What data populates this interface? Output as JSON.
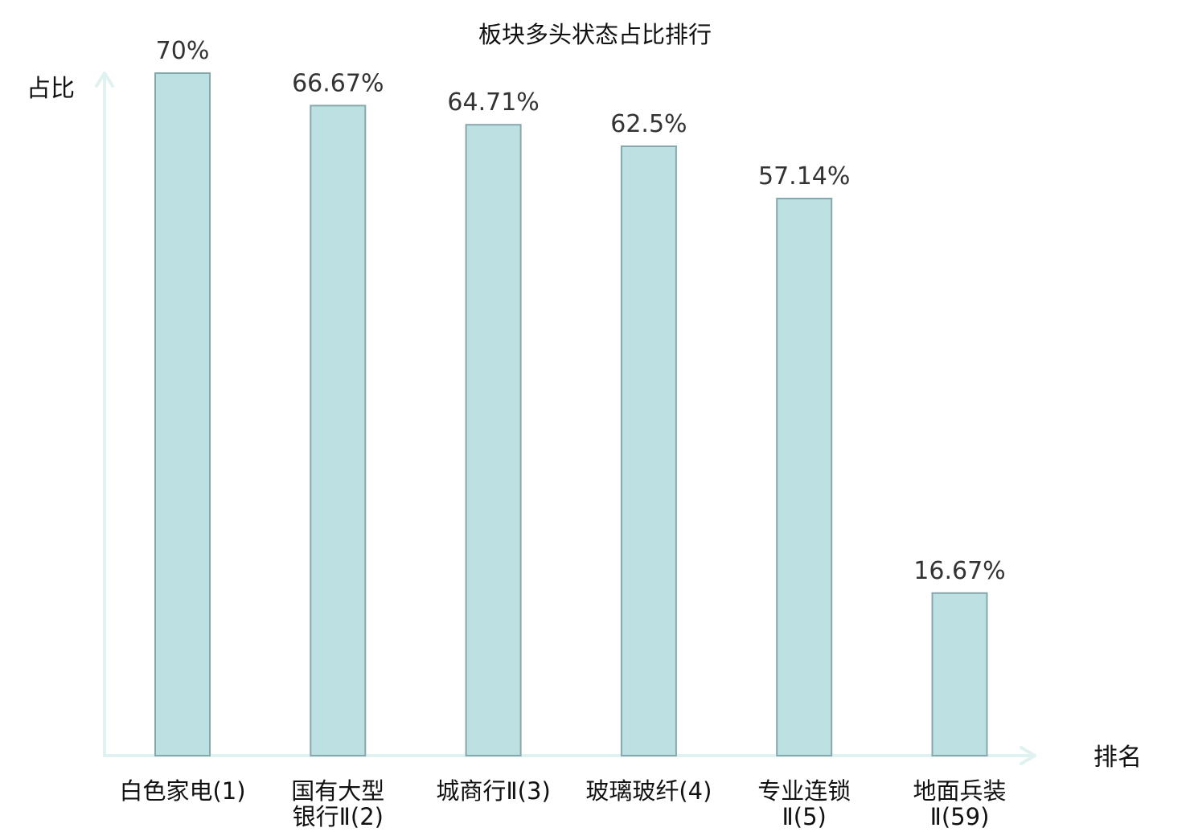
{
  "chart_data": {
    "type": "bar",
    "title": "板块多头状态占比排行",
    "ylabel": "占比",
    "xlabel": "排名",
    "unit": "%",
    "categories": [
      {
        "lines": [
          "白色家电(1)"
        ],
        "highlight": false
      },
      {
        "lines": [
          "国有大型",
          "银行Ⅱ(2)"
        ],
        "highlight": false
      },
      {
        "lines": [
          "城商行Ⅱ(3)"
        ],
        "highlight": false
      },
      {
        "lines": [
          "玻璃玻纤(4)"
        ],
        "highlight": false
      },
      {
        "lines": [
          "专业连锁",
          "Ⅱ(5)"
        ],
        "highlight": false
      },
      {
        "lines": [
          "地面兵装",
          "Ⅱ(59)"
        ],
        "highlight": true
      }
    ],
    "values": [
      70,
      66.67,
      64.71,
      62.5,
      57.14,
      16.67
    ],
    "value_labels": [
      "70%",
      "66.67%",
      "64.71%",
      "62.5%",
      "57.14%",
      "16.67%"
    ],
    "ylim": [
      0,
      70
    ],
    "grid": false,
    "colors": {
      "bar_fill": "#bde1e3",
      "bar_stroke": "#86a7ab",
      "axis": "#dff2ef",
      "highlight_label": "#e8131c",
      "label": "#111111",
      "value_label": "#333333"
    }
  }
}
